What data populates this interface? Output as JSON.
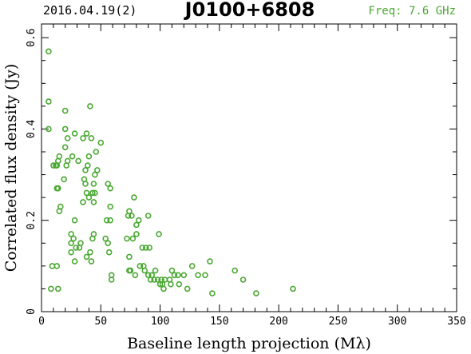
{
  "header": {
    "date": "2016.04.19(2)",
    "source": "J0100+6808",
    "freq": "Freq: 7.6 GHz"
  },
  "colors": {
    "points": "#4aa832",
    "freq_text": "#4aa832",
    "axes": "#000000"
  },
  "chart_data": {
    "type": "scatter",
    "xlabel": "Baseline length projection (Mλ)",
    "ylabel": "Correlated flux density (Jy)",
    "xlim": [
      0,
      350
    ],
    "ylim": [
      0,
      0.63
    ],
    "x_ticks": [
      0,
      50,
      100,
      150,
      200,
      250,
      300,
      350
    ],
    "x_tick_labels": [
      "0",
      "50",
      "100",
      "150",
      "200",
      "250",
      "300",
      "350"
    ],
    "y_ticks": [
      0,
      0.2,
      0.4,
      0.6
    ],
    "y_tick_labels": [
      "0",
      "0.2",
      "0.4",
      "0.6"
    ],
    "grid": false,
    "points": [
      [
        6,
        0.57
      ],
      [
        6,
        0.46
      ],
      [
        6,
        0.4
      ],
      [
        8,
        0.05
      ],
      [
        9,
        0.1
      ],
      [
        10,
        0.32
      ],
      [
        12,
        0.32
      ],
      [
        13,
        0.1
      ],
      [
        13,
        0.27
      ],
      [
        13,
        0.32
      ],
      [
        14,
        0.27
      ],
      [
        14,
        0.33
      ],
      [
        14,
        0.05
      ],
      [
        15,
        0.34
      ],
      [
        15,
        0.22
      ],
      [
        16,
        0.23
      ],
      [
        19,
        0.29
      ],
      [
        20,
        0.44
      ],
      [
        20,
        0.36
      ],
      [
        20,
        0.4
      ],
      [
        21,
        0.32
      ],
      [
        22,
        0.33
      ],
      [
        22,
        0.38
      ],
      [
        25,
        0.17
      ],
      [
        25,
        0.13
      ],
      [
        25,
        0.15
      ],
      [
        26,
        0.34
      ],
      [
        27,
        0.16
      ],
      [
        28,
        0.39
      ],
      [
        28,
        0.11
      ],
      [
        28,
        0.2
      ],
      [
        29,
        0.14
      ],
      [
        31,
        0.33
      ],
      [
        32,
        0.14
      ],
      [
        33,
        0.15
      ],
      [
        35,
        0.38
      ],
      [
        35,
        0.24
      ],
      [
        36,
        0.29
      ],
      [
        37,
        0.28
      ],
      [
        37,
        0.31
      ],
      [
        38,
        0.26
      ],
      [
        38,
        0.39
      ],
      [
        38,
        0.12
      ],
      [
        39,
        0.32
      ],
      [
        40,
        0.25
      ],
      [
        40,
        0.34
      ],
      [
        41,
        0.45
      ],
      [
        41,
        0.13
      ],
      [
        42,
        0.38
      ],
      [
        42,
        0.11
      ],
      [
        43,
        0.26
      ],
      [
        43,
        0.16
      ],
      [
        44,
        0.28
      ],
      [
        44,
        0.24
      ],
      [
        44,
        0.17
      ],
      [
        45,
        0.3
      ],
      [
        45,
        0.26
      ],
      [
        46,
        0.35
      ],
      [
        47,
        0.31
      ],
      [
        50,
        0.37
      ],
      [
        54,
        0.16
      ],
      [
        55,
        0.2
      ],
      [
        56,
        0.28
      ],
      [
        56,
        0.15
      ],
      [
        57,
        0.13
      ],
      [
        58,
        0.27
      ],
      [
        58,
        0.2
      ],
      [
        58,
        0.23
      ],
      [
        59,
        0.08
      ],
      [
        59,
        0.07
      ],
      [
        72,
        0.16
      ],
      [
        73,
        0.21
      ],
      [
        74,
        0.22
      ],
      [
        74,
        0.09
      ],
      [
        74,
        0.12
      ],
      [
        75,
        0.09
      ],
      [
        76,
        0.21
      ],
      [
        77,
        0.16
      ],
      [
        78,
        0.25
      ],
      [
        79,
        0.08
      ],
      [
        80,
        0.17
      ],
      [
        80,
        0.19
      ],
      [
        82,
        0.2
      ],
      [
        83,
        0.1
      ],
      [
        85,
        0.14
      ],
      [
        86,
        0.1
      ],
      [
        87,
        0.09
      ],
      [
        88,
        0.14
      ],
      [
        90,
        0.21
      ],
      [
        90,
        0.08
      ],
      [
        91,
        0.14
      ],
      [
        92,
        0.07
      ],
      [
        93,
        0.08
      ],
      [
        95,
        0.07
      ],
      [
        96,
        0.09
      ],
      [
        98,
        0.07
      ],
      [
        99,
        0.17
      ],
      [
        100,
        0.06
      ],
      [
        101,
        0.07
      ],
      [
        102,
        0.06
      ],
      [
        103,
        0.05
      ],
      [
        104,
        0.07
      ],
      [
        108,
        0.07
      ],
      [
        109,
        0.06
      ],
      [
        110,
        0.09
      ],
      [
        112,
        0.08
      ],
      [
        115,
        0.08
      ],
      [
        116,
        0.06
      ],
      [
        120,
        0.08
      ],
      [
        123,
        0.05
      ],
      [
        127,
        0.1
      ],
      [
        132,
        0.08
      ],
      [
        138,
        0.08
      ],
      [
        142,
        0.11
      ],
      [
        144,
        0.04
      ],
      [
        163,
        0.09
      ],
      [
        170,
        0.07
      ],
      [
        181,
        0.04
      ],
      [
        212,
        0.05
      ]
    ]
  }
}
